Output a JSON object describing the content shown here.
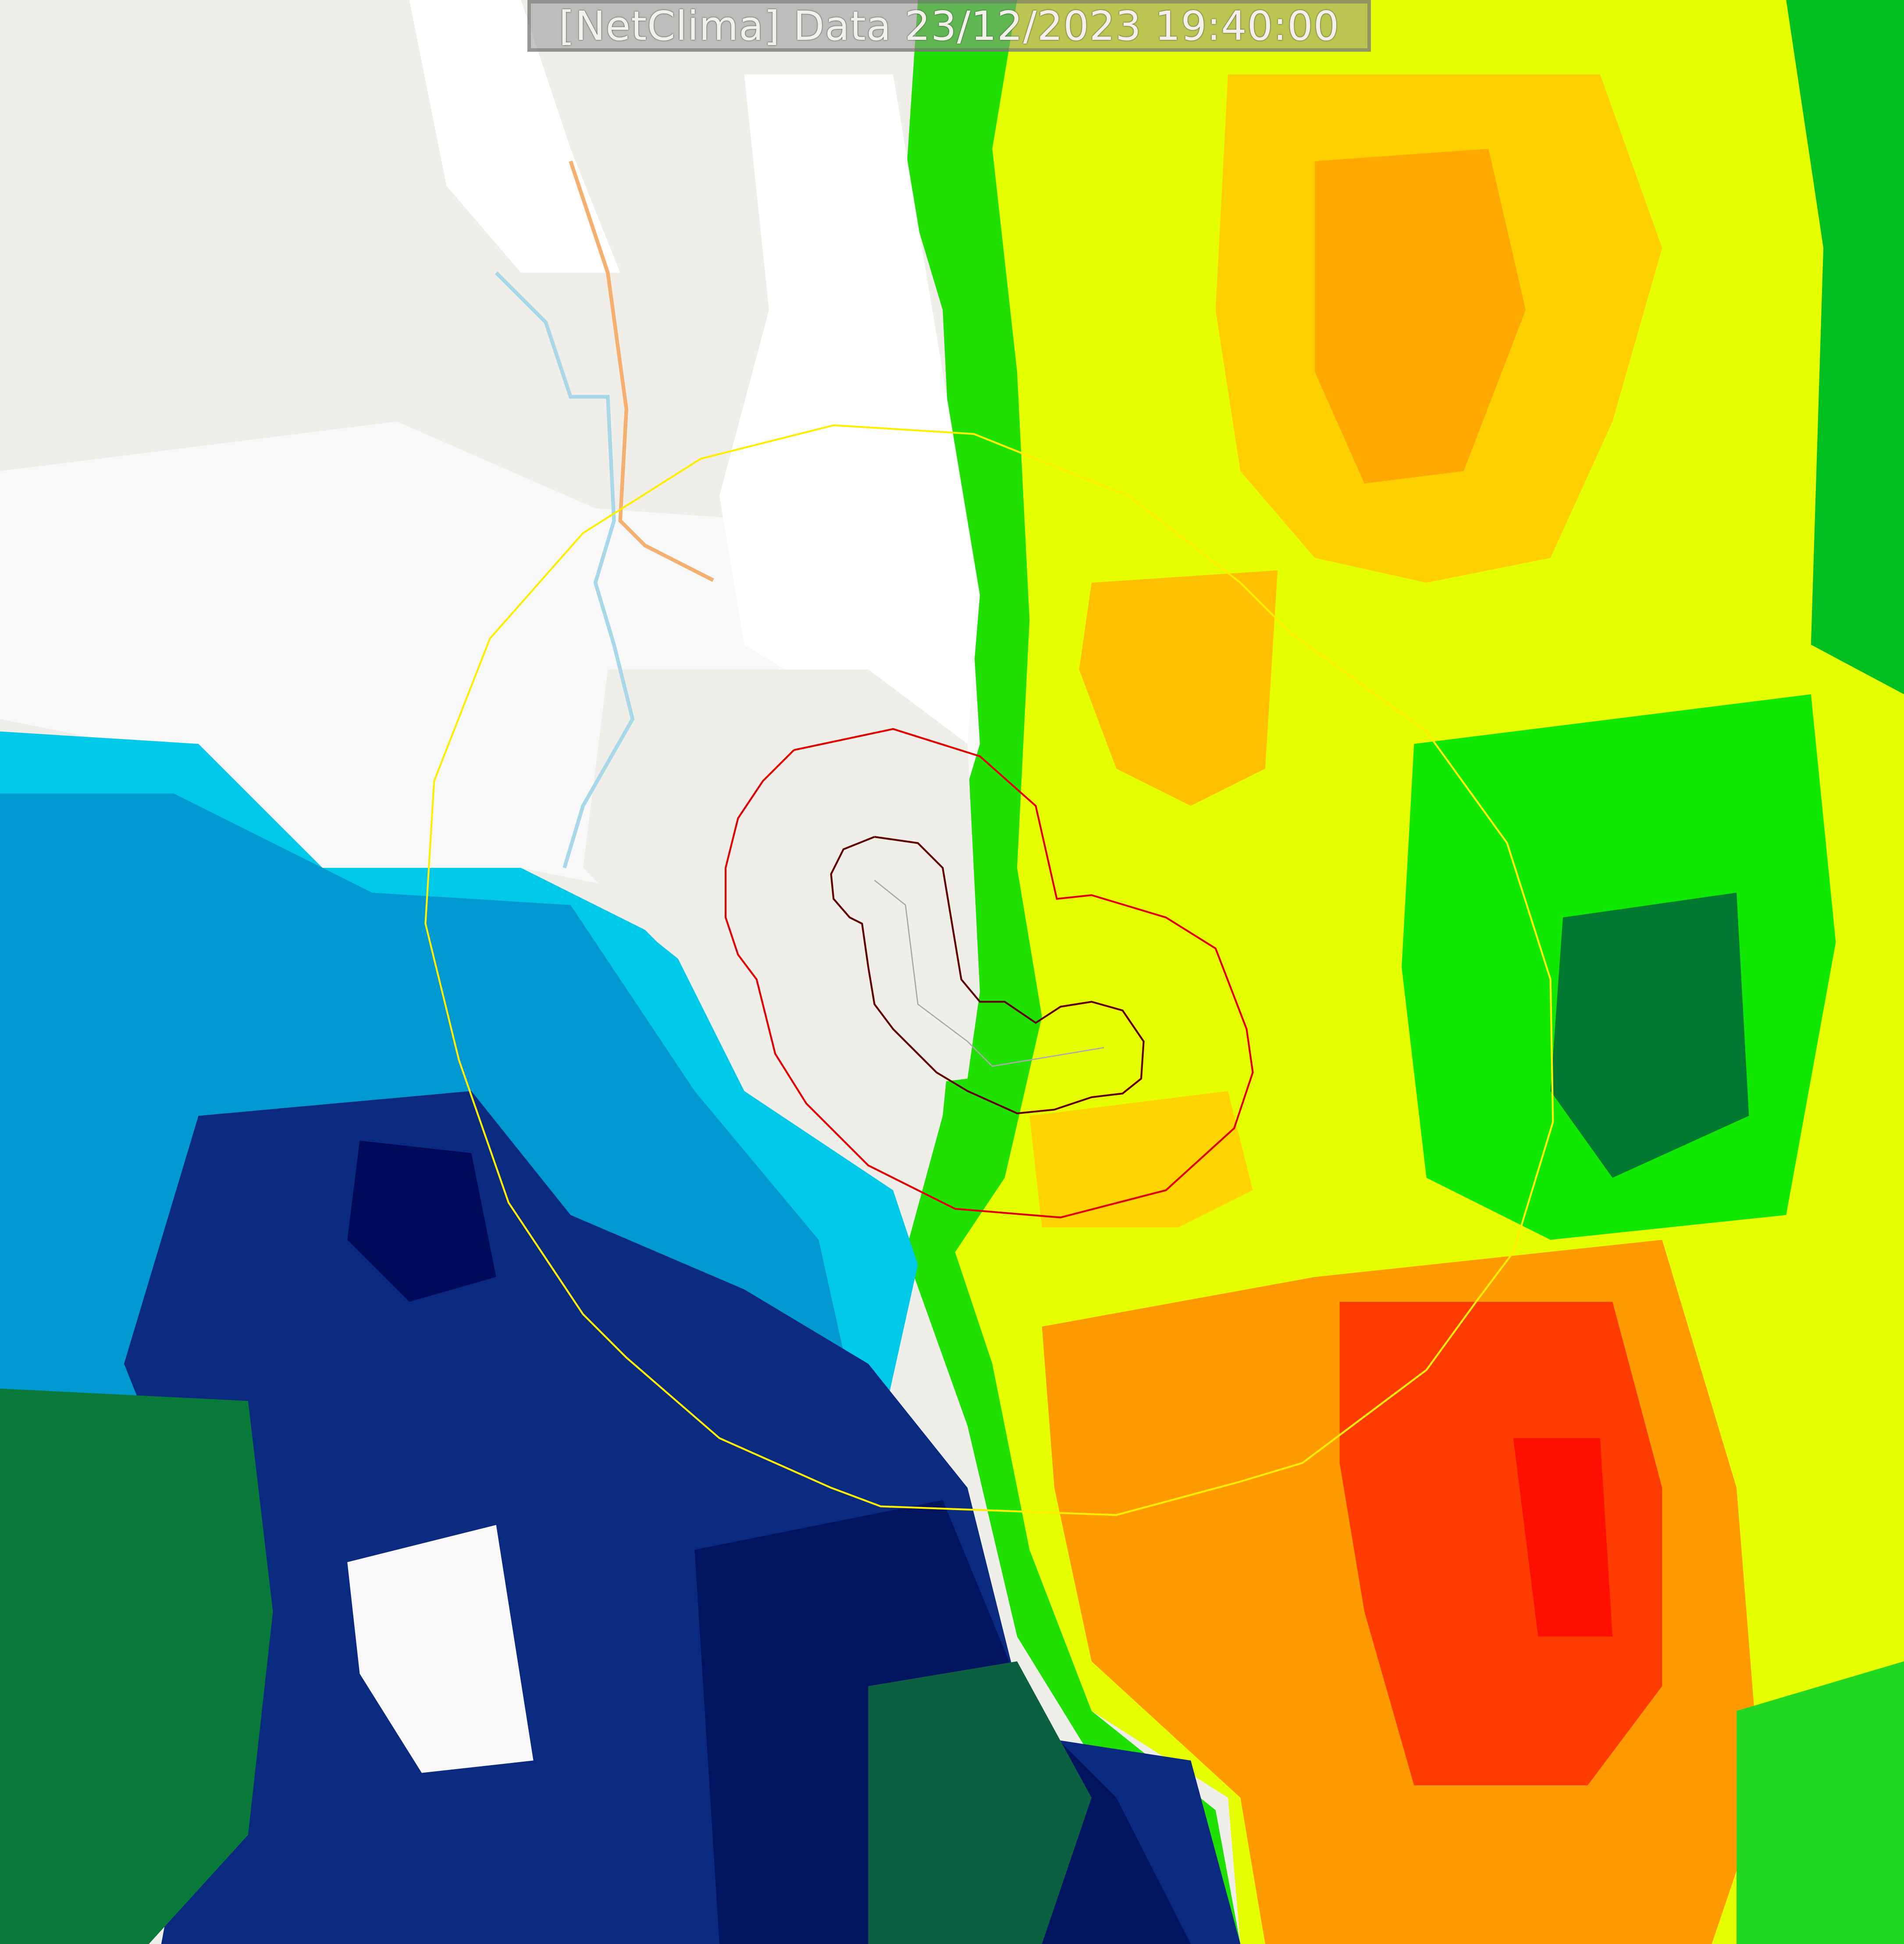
{
  "header": {
    "title": "[NetClima] Data 23/12/2023 19:40:00"
  },
  "map": {
    "layers": [
      "base-map",
      "radar-reflectivity",
      "range-rings"
    ],
    "colors": {
      "land": "#f0eee9",
      "cloud_white": "#ffffff",
      "cyan": "#00e5ff",
      "light_blue": "#00a8d8",
      "mid_blue": "#0060b0",
      "navy": "#001a66",
      "dark_green": "#006030",
      "green": "#00e000",
      "lime": "#80ff00",
      "yellow": "#ffff00",
      "gold": "#ffd000",
      "orange": "#ff9000",
      "red": "#ff2000",
      "ring_outer": "#ffee00",
      "ring_middle": "#e00000",
      "ring_inner": "#600000",
      "river": "#a8d8e8",
      "road": "#f5b070"
    }
  }
}
